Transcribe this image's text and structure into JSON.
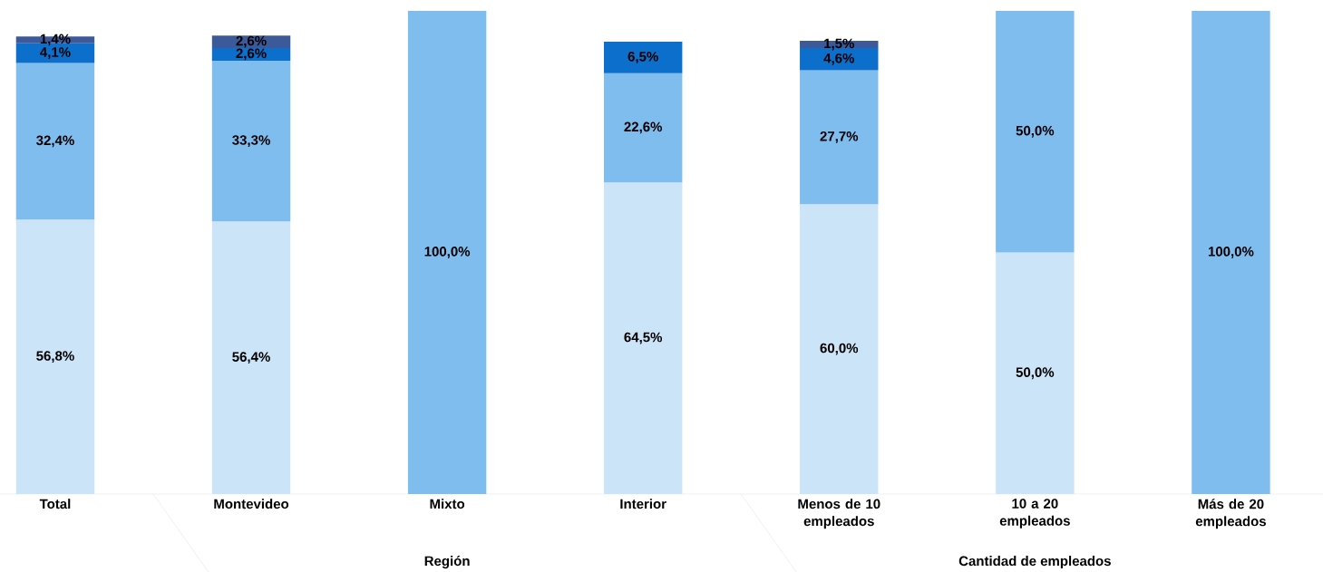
{
  "chart_data": {
    "type": "bar",
    "stacked": true,
    "categories": [
      "Total",
      "Montevideo",
      "Mixto",
      "Interior",
      "Menos de 10 empleados",
      "10 a 20 empleados",
      "Más de 20 empleados"
    ],
    "series": [
      {
        "color": "#cce4f8",
        "values": [
          56.8,
          56.4,
          null,
          64.5,
          60.0,
          50.0,
          null
        ],
        "value_labels": [
          "56,8%",
          "56,4%",
          null,
          "64,5%",
          "60,0%",
          "50,0%",
          null
        ]
      },
      {
        "color": "#80bdef",
        "values": [
          32.4,
          33.3,
          100.0,
          22.6,
          27.7,
          50.0,
          100.0
        ],
        "value_labels": [
          "32,4%",
          "33,3%",
          "100,0%",
          "22,6%",
          "27,7%",
          "50,0%",
          "100,0%"
        ]
      },
      {
        "color": "#0b6fcb",
        "values": [
          4.1,
          2.6,
          null,
          6.5,
          4.6,
          null,
          null
        ],
        "value_labels": [
          "4,1%",
          "2,6%",
          null,
          "6,5%",
          "4,6%",
          null,
          null
        ]
      },
      {
        "color": "#3c5a9a",
        "values": [
          1.4,
          2.6,
          null,
          null,
          1.5,
          null,
          null
        ],
        "value_labels": [
          "1,4%",
          "2,6%",
          null,
          null,
          "1,5%",
          null,
          null
        ]
      }
    ],
    "ylim": [
      0,
      100
    ],
    "annotations": [
      "Región",
      "Cantidad de empleados"
    ]
  }
}
